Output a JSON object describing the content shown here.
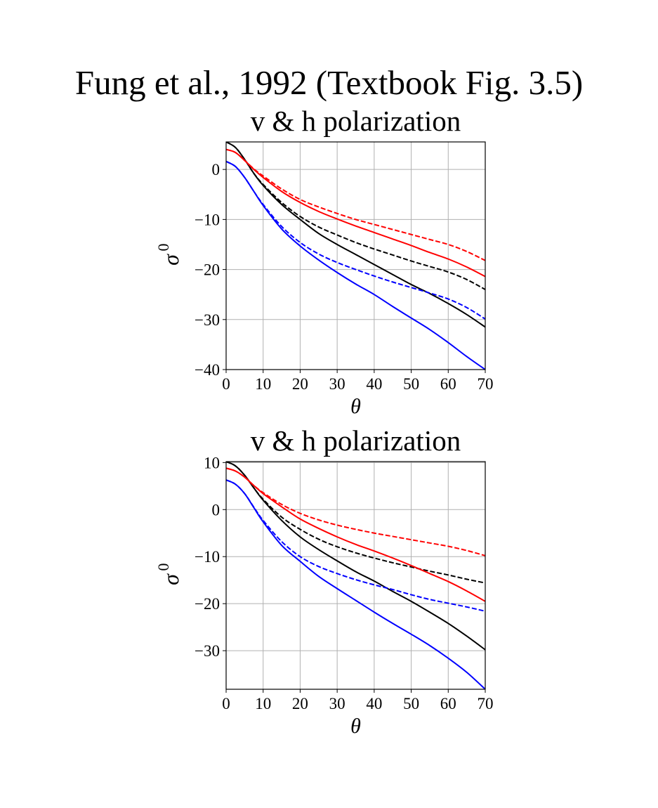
{
  "figure": {
    "suptitle": "Fung et al., 1992 (Textbook Fig. 3.5)"
  },
  "colors": {
    "black": "#000000",
    "red": "#ff0000",
    "blue": "#0000ff",
    "grid": "#b0b0b0"
  },
  "chart_data": [
    {
      "type": "line",
      "title": "v & h polarization",
      "xlabel": "θ",
      "ylabel": "σ",
      "ylabel_superscript": "0",
      "xlim": [
        0,
        70
      ],
      "ylim": [
        -40,
        5.5
      ],
      "xticks": [
        0,
        10,
        20,
        30,
        40,
        50,
        60,
        70
      ],
      "yticks": [
        0,
        -10,
        -20,
        -30,
        -40
      ],
      "grid": true,
      "x": [
        0,
        2.5,
        5,
        7.5,
        10,
        15,
        20,
        25,
        30,
        35,
        40,
        45,
        50,
        55,
        60,
        65,
        70
      ],
      "series": [
        {
          "color": "black",
          "dash": "solid",
          "values": [
            5.5,
            4.4,
            2.0,
            -0.8,
            -3.2,
            -7.0,
            -10.0,
            -12.8,
            -15.0,
            -17.0,
            -19.0,
            -21.0,
            -23.0,
            -24.8,
            -26.8,
            -29.0,
            -31.5
          ]
        },
        {
          "color": "black",
          "dash": "dashed",
          "values": [
            5.5,
            4.4,
            2.0,
            -0.8,
            -3.0,
            -6.6,
            -9.4,
            -11.5,
            -13.1,
            -14.6,
            -15.9,
            -17.1,
            -18.3,
            -19.4,
            -20.5,
            -22.0,
            -24.0
          ]
        },
        {
          "color": "red",
          "dash": "solid",
          "values": [
            4.0,
            3.4,
            1.8,
            0.0,
            -1.6,
            -4.4,
            -6.6,
            -8.4,
            -9.9,
            -11.3,
            -12.6,
            -13.9,
            -15.2,
            -16.6,
            -17.9,
            -19.5,
            -21.4
          ]
        },
        {
          "color": "red",
          "dash": "dashed",
          "values": [
            4.0,
            3.4,
            1.8,
            0.1,
            -1.3,
            -3.9,
            -6.0,
            -7.5,
            -8.8,
            -10.0,
            -11.0,
            -12.0,
            -13.0,
            -14.0,
            -15.0,
            -16.4,
            -18.2
          ]
        },
        {
          "color": "blue",
          "dash": "solid",
          "values": [
            1.6,
            0.6,
            -1.6,
            -4.4,
            -7.2,
            -11.9,
            -15.3,
            -18.1,
            -20.6,
            -22.9,
            -25.0,
            -27.4,
            -29.7,
            -32.0,
            -34.6,
            -37.4,
            -40.0
          ]
        },
        {
          "color": "blue",
          "dash": "dashed",
          "values": [
            1.6,
            0.6,
            -1.6,
            -4.4,
            -7.0,
            -11.4,
            -14.6,
            -16.9,
            -18.6,
            -20.0,
            -21.3,
            -22.5,
            -23.6,
            -24.7,
            -25.9,
            -27.6,
            -29.9
          ]
        }
      ]
    },
    {
      "type": "line",
      "title": "v & h polarization",
      "xlabel": "θ",
      "ylabel": "σ",
      "ylabel_superscript": "0",
      "xlim": [
        0,
        70
      ],
      "ylim": [
        -38.2,
        10.2
      ],
      "xticks": [
        0,
        10,
        20,
        30,
        40,
        50,
        60,
        70
      ],
      "yticks": [
        10,
        0,
        -10,
        -20,
        -30
      ],
      "grid": true,
      "x": [
        0,
        2.5,
        5,
        7.5,
        10,
        15,
        20,
        25,
        30,
        35,
        40,
        45,
        50,
        55,
        60,
        65,
        70
      ],
      "series": [
        {
          "color": "black",
          "dash": "solid",
          "values": [
            10.2,
            9.3,
            7.3,
            4.6,
            2.0,
            -2.3,
            -5.8,
            -8.5,
            -10.9,
            -13.2,
            -15.2,
            -17.4,
            -19.5,
            -21.8,
            -24.2,
            -26.9,
            -29.8
          ]
        },
        {
          "color": "black",
          "dash": "dashed",
          "values": [
            10.2,
            9.3,
            7.3,
            4.6,
            2.2,
            -1.6,
            -4.2,
            -6.3,
            -7.9,
            -9.2,
            -10.3,
            -11.3,
            -12.2,
            -13.1,
            -13.9,
            -14.8,
            -15.6
          ]
        },
        {
          "color": "red",
          "dash": "solid",
          "values": [
            8.8,
            8.2,
            6.9,
            5.1,
            3.4,
            0.6,
            -2.0,
            -4.0,
            -5.8,
            -7.4,
            -8.8,
            -10.3,
            -11.9,
            -13.6,
            -15.3,
            -17.3,
            -19.5
          ]
        },
        {
          "color": "red",
          "dash": "dashed",
          "values": [
            8.8,
            8.2,
            6.9,
            5.1,
            3.6,
            1.1,
            -0.8,
            -2.2,
            -3.3,
            -4.2,
            -5.0,
            -5.7,
            -6.4,
            -7.1,
            -7.8,
            -8.7,
            -9.8
          ]
        },
        {
          "color": "blue",
          "dash": "solid",
          "values": [
            6.3,
            5.4,
            3.4,
            0.4,
            -2.6,
            -7.6,
            -11.0,
            -14.2,
            -16.8,
            -19.3,
            -21.8,
            -24.2,
            -26.5,
            -28.9,
            -31.6,
            -34.6,
            -38.2
          ]
        },
        {
          "color": "blue",
          "dash": "dashed",
          "values": [
            6.3,
            5.4,
            3.4,
            0.5,
            -2.3,
            -6.8,
            -10.0,
            -12.1,
            -13.6,
            -14.9,
            -16.0,
            -17.0,
            -18.1,
            -19.1,
            -19.9,
            -20.7,
            -21.6
          ]
        }
      ]
    }
  ]
}
